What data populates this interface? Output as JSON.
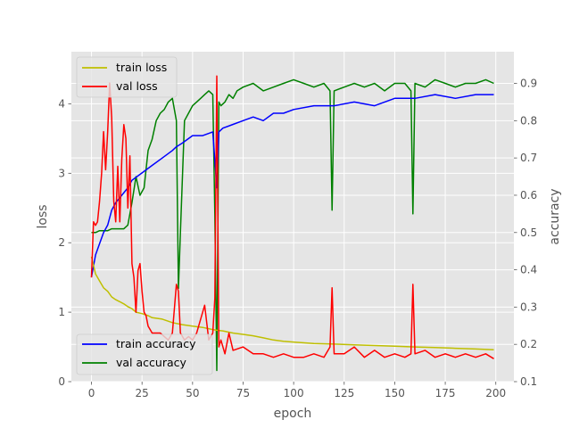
{
  "chart_data": {
    "type": "line",
    "xlabel": "epoch",
    "ylabel_left": "loss",
    "ylabel_right": "accuracy",
    "xlim": [
      -9.95,
      208.95
    ],
    "ylim_left": [
      0,
      4.75
    ],
    "ylim_right": [
      0.1,
      0.985
    ],
    "x_ticks": [
      0,
      25,
      50,
      75,
      100,
      125,
      150,
      175,
      200
    ],
    "y_left_ticks": [
      0,
      1,
      2,
      3,
      4
    ],
    "y_right_ticks": [
      0.1,
      0.2,
      0.3,
      0.4,
      0.5,
      0.6,
      0.7,
      0.8,
      0.9
    ],
    "grid": true,
    "style": "ggplot",
    "legend_top": {
      "placement": "upper-left",
      "entries": [
        "train loss",
        "val loss"
      ]
    },
    "legend_bottom": {
      "placement": "lower-left",
      "entries": [
        "train accuracy",
        "val accuracy"
      ]
    },
    "series": [
      {
        "name": "train loss",
        "axis": "left",
        "color": "#bfbf00",
        "x": [
          0,
          2,
          4,
          6,
          8,
          10,
          12,
          14,
          16,
          18,
          20,
          22,
          25,
          28,
          30,
          35,
          40,
          45,
          50,
          55,
          60,
          62,
          65,
          70,
          75,
          80,
          85,
          90,
          95,
          100,
          110,
          120,
          130,
          140,
          150,
          160,
          170,
          180,
          190,
          199
        ],
        "y": [
          1.8,
          1.55,
          1.45,
          1.35,
          1.3,
          1.22,
          1.18,
          1.15,
          1.12,
          1.08,
          1.05,
          1.0,
          0.98,
          0.95,
          0.92,
          0.9,
          0.85,
          0.82,
          0.8,
          0.78,
          0.75,
          0.74,
          0.73,
          0.7,
          0.68,
          0.66,
          0.63,
          0.6,
          0.58,
          0.57,
          0.55,
          0.54,
          0.53,
          0.52,
          0.51,
          0.5,
          0.49,
          0.48,
          0.47,
          0.46
        ]
      },
      {
        "name": "val loss",
        "axis": "left",
        "color": "#ff0000",
        "x": [
          0,
          1,
          2,
          3,
          4,
          5,
          6,
          7,
          8,
          9,
          10,
          11,
          12,
          13,
          14,
          15,
          16,
          17,
          18,
          19,
          20,
          21,
          22,
          23,
          24,
          25,
          26,
          27,
          28,
          29,
          30,
          32,
          34,
          36,
          38,
          40,
          42,
          43,
          44,
          46,
          48,
          50,
          52,
          54,
          56,
          58,
          60,
          61,
          62,
          63,
          64,
          66,
          68,
          70,
          75,
          80,
          85,
          90,
          95,
          100,
          105,
          110,
          115,
          118,
          119,
          120,
          125,
          130,
          135,
          140,
          145,
          150,
          155,
          158,
          159,
          160,
          165,
          170,
          175,
          180,
          185,
          190,
          195,
          199
        ],
        "y": [
          1.5,
          2.3,
          2.25,
          2.3,
          2.6,
          3.0,
          3.6,
          3.05,
          3.6,
          4.3,
          3.8,
          2.6,
          2.3,
          3.1,
          2.3,
          3.2,
          3.7,
          3.5,
          2.5,
          3.25,
          1.7,
          1.5,
          1.0,
          1.6,
          1.7,
          1.3,
          1.0,
          0.95,
          0.8,
          0.75,
          0.7,
          0.7,
          0.7,
          0.65,
          0.6,
          0.7,
          1.4,
          1.3,
          0.7,
          0.6,
          0.65,
          0.6,
          0.7,
          0.9,
          1.1,
          0.6,
          0.7,
          1.2,
          4.4,
          0.5,
          0.6,
          0.4,
          0.7,
          0.45,
          0.5,
          0.4,
          0.4,
          0.35,
          0.4,
          0.35,
          0.35,
          0.4,
          0.35,
          0.5,
          1.35,
          0.4,
          0.4,
          0.5,
          0.35,
          0.45,
          0.35,
          0.4,
          0.35,
          0.4,
          1.4,
          0.4,
          0.45,
          0.35,
          0.4,
          0.35,
          0.4,
          0.35,
          0.4,
          0.33
        ]
      },
      {
        "name": "train accuracy",
        "axis": "right",
        "color": "#0000ff",
        "x": [
          0,
          2,
          4,
          6,
          8,
          10,
          12,
          15,
          18,
          20,
          25,
          30,
          35,
          40,
          42,
          45,
          50,
          55,
          60,
          62,
          63,
          65,
          70,
          75,
          80,
          85,
          90,
          95,
          100,
          110,
          120,
          130,
          140,
          150,
          160,
          170,
          180,
          190,
          199
        ],
        "y": [
          0.38,
          0.44,
          0.47,
          0.5,
          0.52,
          0.56,
          0.58,
          0.6,
          0.62,
          0.64,
          0.66,
          0.68,
          0.7,
          0.72,
          0.73,
          0.74,
          0.76,
          0.76,
          0.77,
          0.62,
          0.77,
          0.78,
          0.79,
          0.8,
          0.81,
          0.8,
          0.82,
          0.82,
          0.83,
          0.84,
          0.84,
          0.85,
          0.84,
          0.86,
          0.86,
          0.87,
          0.86,
          0.87,
          0.87
        ]
      },
      {
        "name": "val accuracy",
        "axis": "right",
        "color": "#008000",
        "x": [
          0,
          2,
          4,
          6,
          8,
          10,
          12,
          14,
          16,
          18,
          20,
          22,
          24,
          26,
          28,
          30,
          32,
          34,
          36,
          38,
          40,
          42,
          43,
          44,
          46,
          48,
          50,
          52,
          54,
          56,
          58,
          60,
          61,
          62,
          63,
          64,
          66,
          68,
          70,
          72,
          75,
          80,
          85,
          90,
          95,
          100,
          105,
          110,
          115,
          118,
          119,
          120,
          125,
          130,
          135,
          140,
          145,
          150,
          155,
          158,
          159,
          160,
          165,
          170,
          175,
          180,
          185,
          190,
          195,
          199
        ],
        "y": [
          0.5,
          0.5,
          0.505,
          0.505,
          0.505,
          0.51,
          0.51,
          0.51,
          0.51,
          0.52,
          0.58,
          0.65,
          0.6,
          0.62,
          0.72,
          0.75,
          0.8,
          0.82,
          0.83,
          0.85,
          0.86,
          0.8,
          0.35,
          0.5,
          0.8,
          0.82,
          0.84,
          0.85,
          0.86,
          0.87,
          0.88,
          0.87,
          0.55,
          0.13,
          0.85,
          0.84,
          0.85,
          0.87,
          0.86,
          0.88,
          0.89,
          0.9,
          0.88,
          0.89,
          0.9,
          0.91,
          0.9,
          0.89,
          0.9,
          0.88,
          0.56,
          0.88,
          0.89,
          0.9,
          0.89,
          0.9,
          0.88,
          0.9,
          0.9,
          0.88,
          0.55,
          0.9,
          0.89,
          0.91,
          0.9,
          0.89,
          0.9,
          0.9,
          0.91,
          0.9
        ]
      }
    ]
  }
}
